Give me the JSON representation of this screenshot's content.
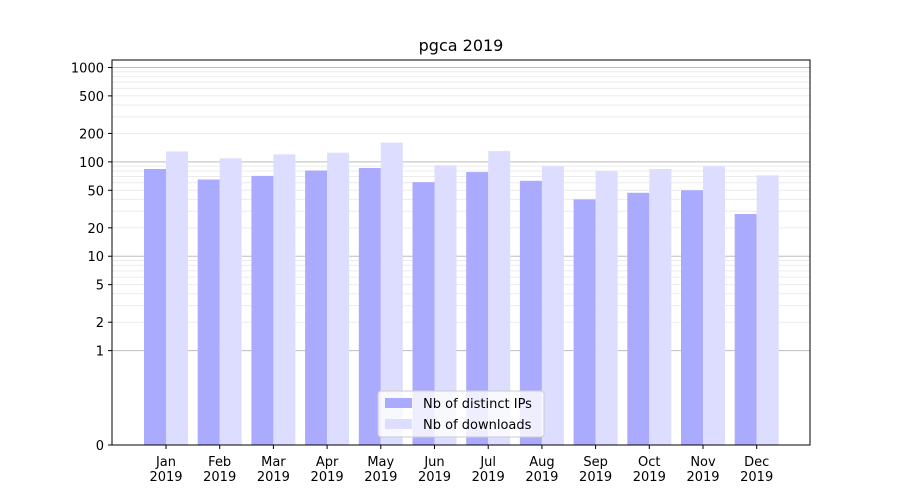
{
  "chart_data": {
    "type": "bar",
    "title": "pgca 2019",
    "xlabel": "",
    "ylabel": "",
    "yscale": "symlog",
    "ylim": [
      0,
      1200
    ],
    "yticks": [
      0,
      1,
      2,
      5,
      10,
      20,
      50,
      100,
      200,
      500,
      1000
    ],
    "ytick_labels": [
      "0",
      "1",
      "2",
      "5",
      "10",
      "20",
      "50",
      "100",
      "200",
      "500",
      "1000"
    ],
    "categories": [
      "Jan\n2019",
      "Feb\n2019",
      "Mar\n2019",
      "Apr\n2019",
      "May\n2019",
      "Jun\n2019",
      "Jul\n2019",
      "Aug\n2019",
      "Sep\n2019",
      "Oct\n2019",
      "Nov\n2019",
      "Dec\n2019"
    ],
    "category_lines": [
      [
        "Jan",
        "2019"
      ],
      [
        "Feb",
        "2019"
      ],
      [
        "Mar",
        "2019"
      ],
      [
        "Apr",
        "2019"
      ],
      [
        "May",
        "2019"
      ],
      [
        "Jun",
        "2019"
      ],
      [
        "Jul",
        "2019"
      ],
      [
        "Aug",
        "2019"
      ],
      [
        "Sep",
        "2019"
      ],
      [
        "Oct",
        "2019"
      ],
      [
        "Nov",
        "2019"
      ],
      [
        "Dec",
        "2019"
      ]
    ],
    "series": [
      {
        "name": "Nb of distinct IPs",
        "color": "#aaaaff",
        "values": [
          84,
          65,
          71,
          81,
          86,
          61,
          78,
          63,
          40,
          47,
          50,
          28
        ]
      },
      {
        "name": "Nb of downloads",
        "color": "#ddddff",
        "values": [
          129,
          109,
          120,
          125,
          160,
          92,
          130,
          90,
          80,
          84,
          90,
          72
        ]
      }
    ],
    "grid": true,
    "legend": "lower-center"
  }
}
